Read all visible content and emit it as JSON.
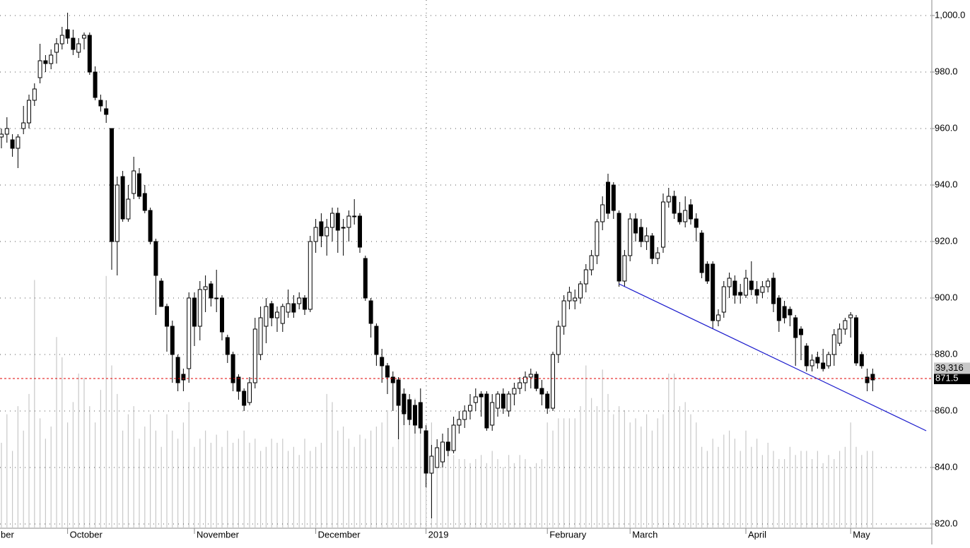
{
  "chart_data": {
    "type": "candlestick",
    "categories": [
      "ber",
      null,
      null,
      null,
      null,
      null,
      null,
      null,
      null,
      null,
      null,
      null,
      "October",
      null,
      null,
      null,
      null,
      null,
      null,
      null,
      null,
      null,
      null,
      null,
      null,
      null,
      null,
      null,
      null,
      null,
      null,
      null,
      null,
      null,
      null,
      "November",
      null,
      null,
      null,
      null,
      null,
      null,
      null,
      null,
      null,
      null,
      null,
      null,
      null,
      null,
      null,
      null,
      null,
      null,
      null,
      null,
      null,
      "December",
      null,
      null,
      null,
      null,
      null,
      null,
      null,
      null,
      null,
      null,
      null,
      null,
      null,
      null,
      null,
      null,
      null,
      null,
      null,
      "2019",
      null,
      null,
      null,
      null,
      null,
      null,
      null,
      null,
      null,
      null,
      null,
      null,
      null,
      null,
      null,
      null,
      null,
      null,
      null,
      null,
      null,
      "February",
      null,
      null,
      null,
      null,
      null,
      null,
      null,
      null,
      null,
      null,
      null,
      null,
      null,
      null,
      "March",
      null,
      null,
      null,
      null,
      null,
      null,
      null,
      null,
      null,
      null,
      null,
      null,
      null,
      null,
      null,
      null,
      null,
      null,
      null,
      null,
      "April",
      null,
      null,
      null,
      null,
      null,
      null,
      null,
      null,
      null,
      null,
      null,
      null,
      null,
      null,
      null,
      null,
      null,
      null,
      "May",
      null,
      null,
      null,
      null
    ],
    "candles": [
      [
        957,
        960,
        953,
        958
      ],
      [
        958,
        964,
        955,
        960
      ],
      [
        956,
        958,
        950,
        953
      ],
      [
        953,
        958,
        946,
        957
      ],
      [
        960,
        968,
        958,
        962
      ],
      [
        962,
        972,
        960,
        970
      ],
      [
        970,
        976,
        968,
        974
      ],
      [
        978,
        990,
        976,
        984
      ],
      [
        984,
        986,
        980,
        983
      ],
      [
        983,
        988,
        981,
        986
      ],
      [
        987,
        992,
        983,
        990
      ],
      [
        990,
        996,
        988,
        993
      ],
      [
        995,
        1001,
        990,
        992
      ],
      [
        992,
        995,
        986,
        988
      ],
      [
        987,
        992,
        985,
        990
      ],
      [
        992,
        994,
        988,
        993
      ],
      [
        993,
        994,
        979,
        980
      ],
      [
        980,
        982,
        970,
        971
      ],
      [
        970,
        972,
        966,
        968
      ],
      [
        967,
        970,
        962,
        965
      ],
      [
        960,
        960,
        910,
        920
      ],
      [
        920,
        943,
        908,
        940
      ],
      [
        943,
        945,
        927,
        928
      ],
      [
        928,
        940,
        927,
        935
      ],
      [
        937,
        950,
        935,
        945
      ],
      [
        944,
        946,
        935,
        936
      ],
      [
        937,
        940,
        930,
        931
      ],
      [
        931,
        932,
        919,
        920
      ],
      [
        920,
        921,
        894,
        908
      ],
      [
        906,
        907,
        897,
        897
      ],
      [
        897,
        898,
        881,
        890
      ],
      [
        890,
        892,
        870,
        880
      ],
      [
        879,
        880,
        867,
        870
      ],
      [
        873,
        875,
        867,
        871
      ],
      [
        875,
        902,
        870,
        900
      ],
      [
        900,
        902,
        883,
        890
      ],
      [
        890,
        906,
        885,
        903
      ],
      [
        903,
        908,
        895,
        904
      ],
      [
        905,
        906,
        897,
        900
      ],
      [
        900,
        910,
        895,
        900
      ],
      [
        900,
        901,
        885,
        888
      ],
      [
        886,
        887,
        877,
        880
      ],
      [
        880,
        881,
        867,
        870
      ],
      [
        872,
        873,
        864,
        867
      ],
      [
        867,
        868,
        860,
        862
      ],
      [
        863,
        872,
        862,
        870
      ],
      [
        870,
        893,
        868,
        889
      ],
      [
        880,
        897,
        878,
        893
      ],
      [
        890,
        900,
        884,
        897
      ],
      [
        898,
        899,
        890,
        893
      ],
      [
        893,
        897,
        888,
        895
      ],
      [
        891,
        898,
        888,
        897
      ],
      [
        895,
        903,
        893,
        898
      ],
      [
        898,
        901,
        893,
        895
      ],
      [
        898,
        902,
        896,
        900
      ],
      [
        900,
        901,
        894,
        896
      ],
      [
        896,
        922,
        895,
        920
      ],
      [
        920,
        928,
        916,
        925
      ],
      [
        927,
        930,
        918,
        922
      ],
      [
        922,
        928,
        915,
        925
      ],
      [
        925,
        932,
        920,
        930
      ],
      [
        930,
        932,
        916,
        924
      ],
      [
        925,
        928,
        915,
        925
      ],
      [
        925,
        931,
        920,
        929
      ],
      [
        929,
        935,
        926,
        929
      ],
      [
        929,
        930,
        916,
        918
      ],
      [
        914,
        915,
        899,
        900
      ],
      [
        899,
        900,
        886,
        891
      ],
      [
        890,
        891,
        876,
        880
      ],
      [
        879,
        882,
        870,
        876
      ],
      [
        876,
        877,
        866,
        872
      ],
      [
        872,
        874,
        860,
        870
      ],
      [
        871,
        872,
        850,
        862
      ],
      [
        866,
        868,
        855,
        859
      ],
      [
        864,
        866,
        855,
        857
      ],
      [
        862,
        864,
        852,
        855
      ],
      [
        863,
        868,
        852,
        854
      ],
      [
        853,
        855,
        833,
        838
      ],
      [
        838,
        848,
        822,
        844
      ],
      [
        840,
        850,
        840,
        847
      ],
      [
        842,
        852,
        840,
        849
      ],
      [
        849,
        854,
        844,
        846
      ],
      [
        846,
        858,
        845,
        855
      ],
      [
        855,
        860,
        852,
        857
      ],
      [
        857,
        862,
        854,
        860
      ],
      [
        860,
        866,
        857,
        862
      ],
      [
        863,
        868,
        860,
        865
      ],
      [
        866,
        867,
        858,
        865
      ],
      [
        866,
        867,
        853,
        854
      ],
      [
        855,
        866,
        853,
        863
      ],
      [
        861,
        867,
        858,
        866
      ],
      [
        866,
        868,
        859,
        861
      ],
      [
        860,
        867,
        858,
        866
      ],
      [
        866,
        870,
        862,
        868
      ],
      [
        868,
        872,
        866,
        870
      ],
      [
        870,
        874,
        867,
        872
      ],
      [
        872,
        875,
        868,
        873
      ],
      [
        873,
        874,
        867,
        868
      ],
      [
        868,
        871,
        862,
        866
      ],
      [
        866,
        867,
        859,
        861
      ],
      [
        861,
        881,
        860,
        880
      ],
      [
        880,
        892,
        877,
        890
      ],
      [
        890,
        901,
        887,
        899
      ],
      [
        899,
        904,
        896,
        902
      ],
      [
        899,
        903,
        896,
        900
      ],
      [
        900,
        906,
        898,
        905
      ],
      [
        905,
        912,
        902,
        910
      ],
      [
        910,
        917,
        908,
        915
      ],
      [
        915,
        928,
        912,
        927
      ],
      [
        927,
        936,
        924,
        933
      ],
      [
        941,
        944,
        928,
        930
      ],
      [
        940,
        941,
        928,
        931
      ],
      [
        930,
        931,
        904,
        906
      ],
      [
        906,
        917,
        904,
        915
      ],
      [
        915,
        930,
        913,
        928
      ],
      [
        928,
        930,
        920,
        923
      ],
      [
        925,
        928,
        918,
        920
      ],
      [
        920,
        925,
        917,
        922
      ],
      [
        922,
        923,
        912,
        914
      ],
      [
        914,
        918,
        912,
        916
      ],
      [
        918,
        937,
        916,
        934
      ],
      [
        934,
        939,
        932,
        936
      ],
      [
        936,
        938,
        928,
        930
      ],
      [
        930,
        934,
        926,
        927
      ],
      [
        927,
        936,
        925,
        931
      ],
      [
        933,
        935,
        926,
        928
      ],
      [
        928,
        930,
        920,
        925
      ],
      [
        923,
        924,
        907,
        909
      ],
      [
        912,
        913,
        905,
        906
      ],
      [
        912,
        913,
        889,
        892
      ],
      [
        892,
        896,
        890,
        894
      ],
      [
        895,
        906,
        893,
        904
      ],
      [
        904,
        909,
        900,
        907
      ],
      [
        906,
        908,
        898,
        901
      ],
      [
        902,
        905,
        898,
        901
      ],
      [
        901,
        910,
        900,
        907
      ],
      [
        906,
        913,
        901,
        903
      ],
      [
        903,
        906,
        898,
        901
      ],
      [
        902,
        906,
        900,
        904
      ],
      [
        904,
        907,
        902,
        906
      ],
      [
        907,
        909,
        895,
        898
      ],
      [
        900,
        901,
        888,
        892
      ],
      [
        897,
        899,
        891,
        893
      ],
      [
        896,
        897,
        890,
        894
      ],
      [
        893,
        894,
        876,
        886
      ],
      [
        889,
        890,
        878,
        887
      ],
      [
        883,
        884,
        874,
        876
      ],
      [
        876,
        880,
        874,
        878
      ],
      [
        879,
        881,
        875,
        877
      ],
      [
        877,
        882,
        874,
        875
      ],
      [
        876,
        881,
        875,
        880
      ],
      [
        880,
        889,
        876,
        887
      ],
      [
        884,
        891,
        883,
        889
      ],
      [
        889,
        893,
        887,
        892
      ],
      [
        893,
        895,
        886,
        894
      ],
      [
        893,
        894,
        876,
        877
      ],
      [
        880,
        881,
        875,
        876
      ],
      [
        872,
        875,
        867,
        870
      ],
      [
        873,
        875,
        867,
        871
      ]
    ],
    "volumes": [
      21000,
      28000,
      19000,
      30000,
      24000,
      33000,
      61000,
      27000,
      22000,
      25000,
      47000,
      42000,
      26000,
      31000,
      38000,
      37000,
      30000,
      26000,
      34000,
      62000,
      40000,
      33000,
      24000,
      28000,
      30000,
      22000,
      25000,
      28000,
      24000,
      20000,
      28000,
      24000,
      22000,
      26000,
      31000,
      20000,
      22000,
      24000,
      21000,
      23000,
      20000,
      24000,
      21000,
      22000,
      24000,
      21000,
      22000,
      19000,
      20000,
      22000,
      21000,
      22000,
      19000,
      20000,
      18000,
      22000,
      19000,
      20000,
      21000,
      33000,
      31000,
      24000,
      25000,
      22000,
      20000,
      23000,
      22000,
      24000,
      25000,
      26000,
      29000,
      20000,
      30000,
      28000,
      31000,
      32000,
      30000,
      18000,
      26000,
      20000,
      18000,
      21000,
      18000,
      17000,
      17000,
      16000,
      17000,
      18000,
      16000,
      19000,
      17000,
      15000,
      18000,
      16000,
      18000,
      17000,
      15000,
      16000,
      17000,
      26000,
      24000,
      27000,
      27000,
      27000,
      27000,
      30000,
      40000,
      32000,
      30000,
      39000,
      33000,
      28000,
      30000,
      29000,
      26000,
      27000,
      25000,
      28000,
      24000,
      27000,
      28000,
      38000,
      38000,
      30000,
      31000,
      28000,
      26000,
      20000,
      19000,
      22000,
      20000,
      23000,
      24000,
      22000,
      19000,
      24000,
      20000,
      22000,
      18000,
      21000,
      19000,
      17000,
      17000,
      20000,
      18000,
      19000,
      19000,
      17000,
      19000,
      16000,
      18000,
      17000,
      19000,
      20000,
      26000,
      20000,
      18000,
      19000,
      19000
    ],
    "volume_color": "#c8c8c8",
    "ylim": [
      820,
      1000
    ],
    "yticks": [
      {
        "value": 820,
        "label": "820.0"
      },
      {
        "value": 840,
        "label": "840.0"
      },
      {
        "value": 860,
        "label": "860.0"
      },
      {
        "value": 880,
        "label": "880.0"
      },
      {
        "value": 900,
        "label": "900.0"
      },
      {
        "value": 920,
        "label": "920.0"
      },
      {
        "value": 940,
        "label": "940.0"
      },
      {
        "value": 960,
        "label": "960.0"
      },
      {
        "value": 980,
        "label": "980.0"
      },
      {
        "value": 1000,
        "label": "1,000.0"
      }
    ],
    "y2lim": [
      0,
      126000
    ],
    "grid": true,
    "last_price": {
      "value": 871.5,
      "label": "871.5",
      "color": "#e00000"
    },
    "last_volume": {
      "value": 39316,
      "label": "39,316"
    },
    "trendline": {
      "x": [
        112,
        167.7
      ],
      "y": [
        905,
        853
      ],
      "color": "#1a1acc"
    }
  }
}
